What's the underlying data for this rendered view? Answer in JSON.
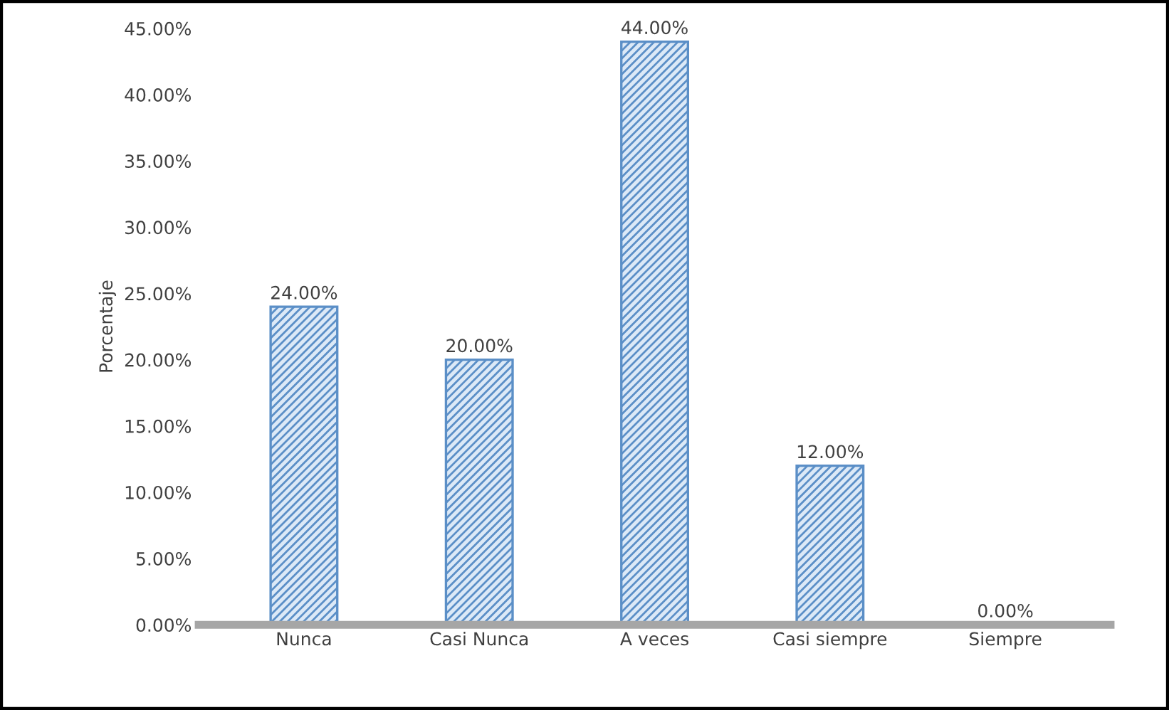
{
  "chart_data": {
    "type": "bar",
    "ylabel": "Porcentaje",
    "categories": [
      "Nunca",
      "Casi Nunca",
      "A veces",
      "Casi siempre",
      "Siempre"
    ],
    "values": [
      24,
      20,
      44,
      12,
      0
    ],
    "value_labels": [
      "24.00%",
      "20.00%",
      "44.00%",
      "12.00%",
      "0.00%"
    ],
    "color": "#5b8fc7",
    "ylim": [
      0,
      45
    ],
    "yticks": [
      {
        "value": 0,
        "label": "0.00%"
      },
      {
        "value": 5,
        "label": "5.00%"
      },
      {
        "value": 10,
        "label": "10.00%"
      },
      {
        "value": 15,
        "label": "15.00%"
      },
      {
        "value": 20,
        "label": "20.00%"
      },
      {
        "value": 25,
        "label": "25.00%"
      },
      {
        "value": 30,
        "label": "30.00%"
      },
      {
        "value": 35,
        "label": "35.00%"
      },
      {
        "value": 40,
        "label": "40.00%"
      },
      {
        "value": 45,
        "label": "45.00%"
      }
    ],
    "grid": false,
    "legend": false
  }
}
